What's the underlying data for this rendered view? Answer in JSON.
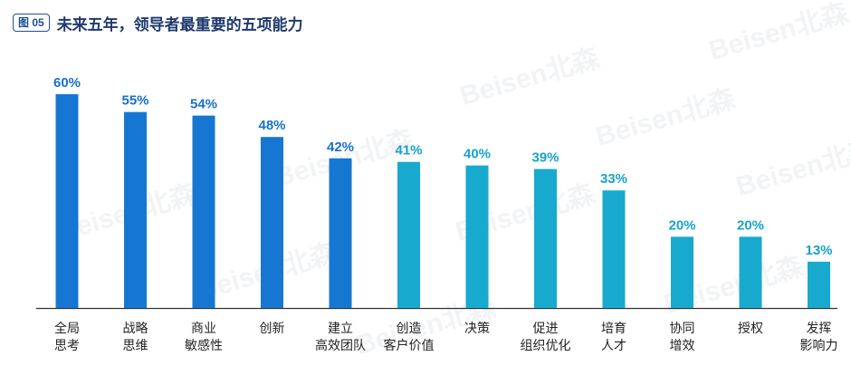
{
  "header": {
    "figure_label": "图 05",
    "title": "未来五年，领导者最重要的五项能力"
  },
  "watermark_text": "Beisen北森",
  "colors": {
    "dark_bar": "#1677d2",
    "light_bar": "#18a9cf",
    "dark_label": "#1670cc",
    "light_label": "#15a3cc",
    "axis": "#333333"
  },
  "chart_data": {
    "type": "bar",
    "title": "未来五年，领导者最重要的五项能力",
    "categories": [
      [
        "全局",
        "思考"
      ],
      [
        "战略",
        "思维"
      ],
      [
        "商业",
        "敏感性"
      ],
      [
        "创新"
      ],
      [
        "建立",
        "高效团队"
      ],
      [
        "创造",
        "客户价值"
      ],
      [
        "决策"
      ],
      [
        "促进",
        "组织优化"
      ],
      [
        "培育",
        "人才"
      ],
      [
        "协同",
        "增效"
      ],
      [
        "授权"
      ],
      [
        "发挥",
        "影响力"
      ]
    ],
    "values": [
      60,
      55,
      54,
      48,
      42,
      41,
      40,
      39,
      33,
      20,
      20,
      13
    ],
    "value_labels": [
      "60%",
      "55%",
      "54%",
      "48%",
      "42%",
      "41%",
      "40%",
      "39%",
      "33%",
      "20%",
      "20%",
      "13%"
    ],
    "highlighted_top": 5,
    "ylim": [
      0,
      60
    ],
    "grid": false,
    "xlabel": "",
    "ylabel": ""
  }
}
